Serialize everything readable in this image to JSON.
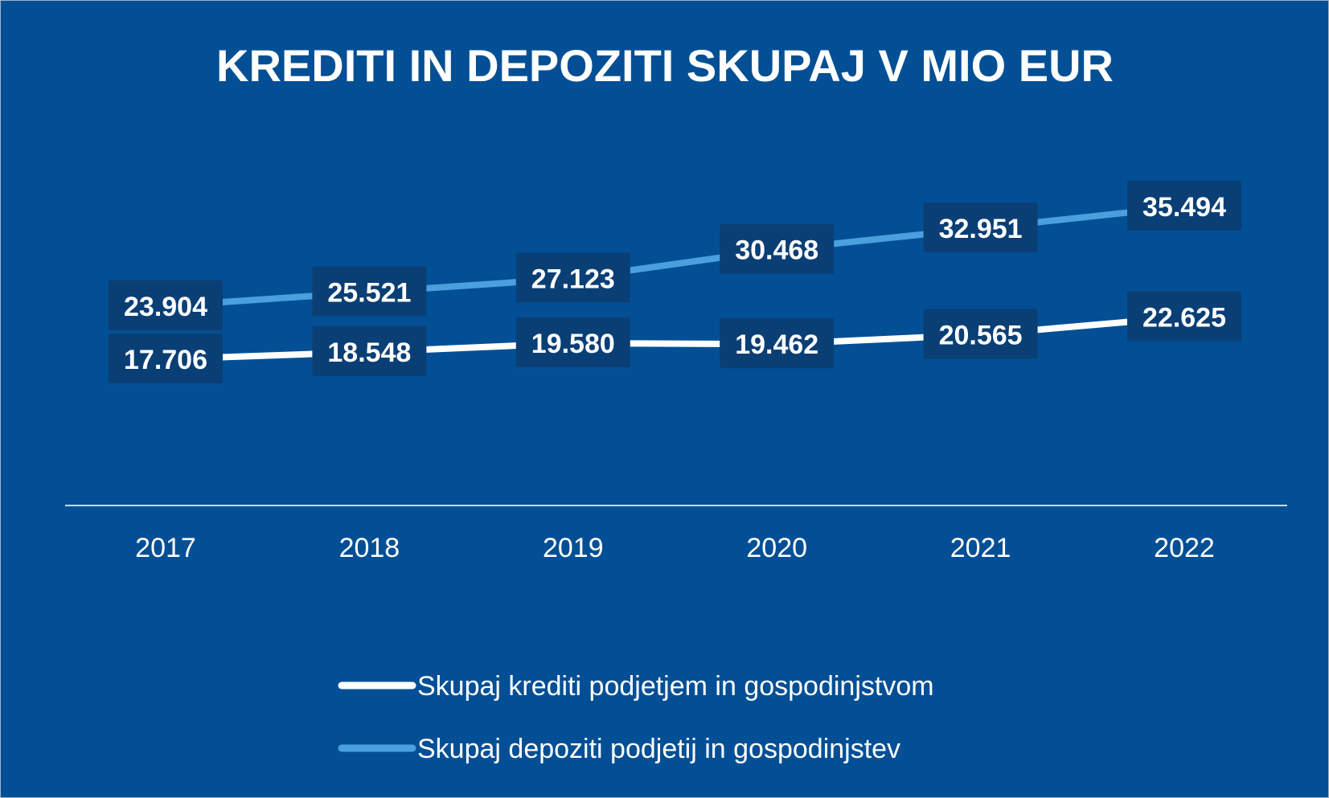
{
  "chart_data": {
    "type": "line",
    "title": "KREDITI IN DEPOZITI SKUPAJ V MIO EUR",
    "categories": [
      "2017",
      "2018",
      "2019",
      "2020",
      "2021",
      "2022"
    ],
    "series": [
      {
        "name": "Skupaj krediti podjetjem in gospodinjstvom",
        "values": [
          17706,
          18548,
          19580,
          19462,
          20565,
          22625
        ],
        "labels": [
          "17.706",
          "18.548",
          "19.580",
          "19.462",
          "20.565",
          "22.625"
        ],
        "color": "#ffffff"
      },
      {
        "name": "Skupaj depoziti podjetij in gospodinjstev",
        "values": [
          23904,
          25521,
          27123,
          30468,
          32951,
          35494
        ],
        "labels": [
          "23.904",
          "25.521",
          "27.123",
          "30.468",
          "32.951",
          "35.494"
        ],
        "color": "#4a9fde"
      }
    ],
    "ylim": [
      0,
      40000
    ],
    "grid": false,
    "legend_position": "bottom",
    "colors": {
      "background": "#034f95",
      "label_box": "#0a3f75",
      "axis": "#c9d8ea"
    }
  }
}
